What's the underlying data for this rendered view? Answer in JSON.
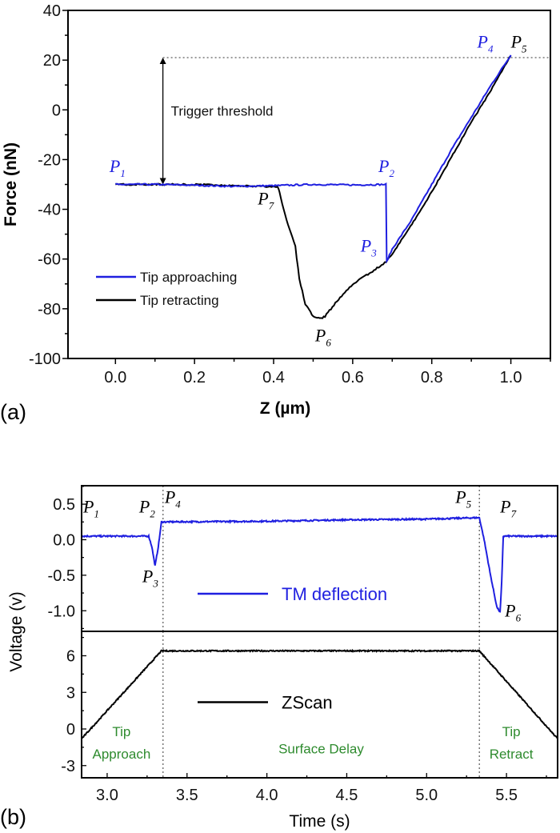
{
  "chart_data": [
    {
      "panel_label": "(a)",
      "type": "line",
      "xlabel": "Z  (µm)",
      "ylabel": "Force (nN)",
      "xlim": [
        -0.12,
        1.1
      ],
      "ylim": [
        -100,
        40
      ],
      "xticks": [
        0.0,
        0.2,
        0.4,
        0.6,
        0.8,
        1.0
      ],
      "xtick_labels": [
        "0.0",
        "0.2",
        "0.4",
        "0.6",
        "0.8",
        "1.0"
      ],
      "yticks": [
        40,
        20,
        0,
        -20,
        -40,
        -60,
        -80,
        -100
      ],
      "ytick_labels": [
        "40",
        "20",
        "0",
        "-20",
        "-40",
        "-60",
        "-80",
        "-100"
      ],
      "grid": false,
      "legend_placement": "bottom-left",
      "series": [
        {
          "name": "Tip approaching",
          "color": "#1f1fe0",
          "points": [
            [
              0,
              -30
            ],
            [
              0.1,
              -30
            ],
            [
              0.2,
              -30.3
            ],
            [
              0.3,
              -30.8
            ],
            [
              0.4,
              -30.5
            ],
            [
              0.5,
              -30
            ],
            [
              0.6,
              -30.2
            ],
            [
              0.684,
              -30
            ],
            [
              0.686,
              -61
            ],
            [
              0.7,
              -56
            ],
            [
              0.75,
              -44
            ],
            [
              0.8,
              -30
            ],
            [
              0.85,
              -16
            ],
            [
              0.9,
              -3
            ],
            [
              0.95,
              10
            ],
            [
              1.0,
              22
            ]
          ]
        },
        {
          "name": "Tip retracting",
          "color": "#000000",
          "points": [
            [
              1.0,
              22
            ],
            [
              0.95,
              8
            ],
            [
              0.9,
              -5
            ],
            [
              0.85,
              -19
            ],
            [
              0.8,
              -33
            ],
            [
              0.75,
              -46
            ],
            [
              0.7,
              -58
            ],
            [
              0.685,
              -61
            ],
            [
              0.65,
              -65
            ],
            [
              0.6,
              -70
            ],
            [
              0.56,
              -77
            ],
            [
              0.53,
              -83
            ],
            [
              0.52,
              -84
            ],
            [
              0.5,
              -83
            ],
            [
              0.48,
              -78
            ],
            [
              0.465,
              -68
            ],
            [
              0.455,
              -55
            ],
            [
              0.44,
              -48
            ],
            [
              0.425,
              -40
            ],
            [
              0.415,
              -33
            ],
            [
              0.41,
              -31
            ],
            [
              0.3,
              -30.5
            ],
            [
              0.2,
              -30
            ],
            [
              0.1,
              -30
            ],
            [
              0,
              -30
            ]
          ]
        }
      ],
      "threshold": {
        "value": 21,
        "label": "Trigger threshold",
        "arrow_x": 0.12,
        "arrow_from": -30
      },
      "annotations": [
        {
          "text": "P",
          "sub": "1",
          "x": -0.015,
          "y": -25,
          "color": "#1f1fe0"
        },
        {
          "text": "P",
          "sub": "2",
          "x": 0.665,
          "y": -25,
          "color": "#1f1fe0"
        },
        {
          "text": "P",
          "sub": "3",
          "x": 0.62,
          "y": -57,
          "color": "#1f1fe0"
        },
        {
          "text": "P",
          "sub": "4",
          "x": 0.915,
          "y": 25,
          "color": "#1f1fe0"
        },
        {
          "text": "P",
          "sub": "5",
          "x": 1.0,
          "y": 25,
          "color": "#000000"
        },
        {
          "text": "P",
          "sub": "6",
          "x": 0.505,
          "y": -93,
          "color": "#000000"
        },
        {
          "text": "P",
          "sub": "7",
          "x": 0.36,
          "y": -38,
          "color": "#000000"
        }
      ]
    },
    {
      "panel_label": "(b)",
      "type": "line",
      "xlabel": "Time (s)",
      "ylabel": "Voltage (v)",
      "xlim": [
        2.84,
        5.82
      ],
      "xticks": [
        3.0,
        3.5,
        4.0,
        4.5,
        5.0,
        5.5
      ],
      "xtick_labels": [
        "3.0",
        "3.5",
        "4.0",
        "4.5",
        "5.0",
        "5.5"
      ],
      "grid": false,
      "markers_x": [
        3.35,
        5.33
      ],
      "panels": [
        {
          "ylim": [
            -1.29,
            0.76
          ],
          "yticks": [
            0.5,
            0.0,
            -0.5,
            -1.0
          ],
          "ytick_labels": [
            "0.5",
            "0.0",
            "-0.5",
            "-1.0"
          ],
          "series": [
            {
              "name": "TM deflection",
              "color": "#1f1fe0",
              "points": [
                [
                  2.84,
                  0.05
                ],
                [
                  3.26,
                  0.05
                ],
                [
                  3.28,
                  -0.1
                ],
                [
                  3.3,
                  -0.37
                ],
                [
                  3.32,
                  -0.1
                ],
                [
                  3.34,
                  0.25
                ],
                [
                  4.0,
                  0.26
                ],
                [
                  4.5,
                  0.28
                ],
                [
                  5.0,
                  0.29
                ],
                [
                  5.33,
                  0.31
                ],
                [
                  5.36,
                  0.0
                ],
                [
                  5.4,
                  -0.5
                ],
                [
                  5.44,
                  -0.95
                ],
                [
                  5.46,
                  -1.02
                ],
                [
                  5.47,
                  -0.6
                ],
                [
                  5.48,
                  0.05
                ],
                [
                  5.82,
                  0.05
                ]
              ]
            }
          ],
          "annotations": [
            {
              "text": "P",
              "sub": "1",
              "x": 2.85,
              "y": 0.38,
              "color": "#000000"
            },
            {
              "text": "P",
              "sub": "2",
              "x": 3.2,
              "y": 0.38,
              "color": "#000000"
            },
            {
              "text": "P",
              "sub": "3",
              "x": 3.22,
              "y": -0.6,
              "color": "#000000"
            },
            {
              "text": "P",
              "sub": "4",
              "x": 3.36,
              "y": 0.52,
              "color": "#000000"
            },
            {
              "text": "P",
              "sub": "5",
              "x": 5.18,
              "y": 0.52,
              "color": "#000000"
            },
            {
              "text": "P",
              "sub": "7",
              "x": 5.46,
              "y": 0.38,
              "color": "#000000"
            },
            {
              "text": "P",
              "sub": "6",
              "x": 5.49,
              "y": -1.08,
              "color": "#000000"
            }
          ],
          "legend_placement": "center"
        },
        {
          "ylim": [
            -4,
            8
          ],
          "yticks": [
            6,
            3,
            0,
            -3
          ],
          "ytick_labels": [
            "6",
            "3",
            "0",
            "-3"
          ],
          "series": [
            {
              "name": "ZScan",
              "color": "#000000",
              "points": [
                [
                  2.84,
                  -0.8
                ],
                [
                  3.34,
                  6.4
                ],
                [
                  5.33,
                  6.4
                ],
                [
                  5.82,
                  -0.8
                ]
              ]
            }
          ],
          "legend_placement": "center",
          "region_labels": [
            {
              "lines": [
                "Tip",
                "Approach"
              ],
              "x": 3.09
            },
            {
              "lines": [
                "Surface   Delay"
              ],
              "x": 4.34
            },
            {
              "lines": [
                "Tip",
                "Retract"
              ],
              "x": 5.53
            }
          ],
          "region_label_color": "#2e8b2e"
        }
      ]
    }
  ]
}
